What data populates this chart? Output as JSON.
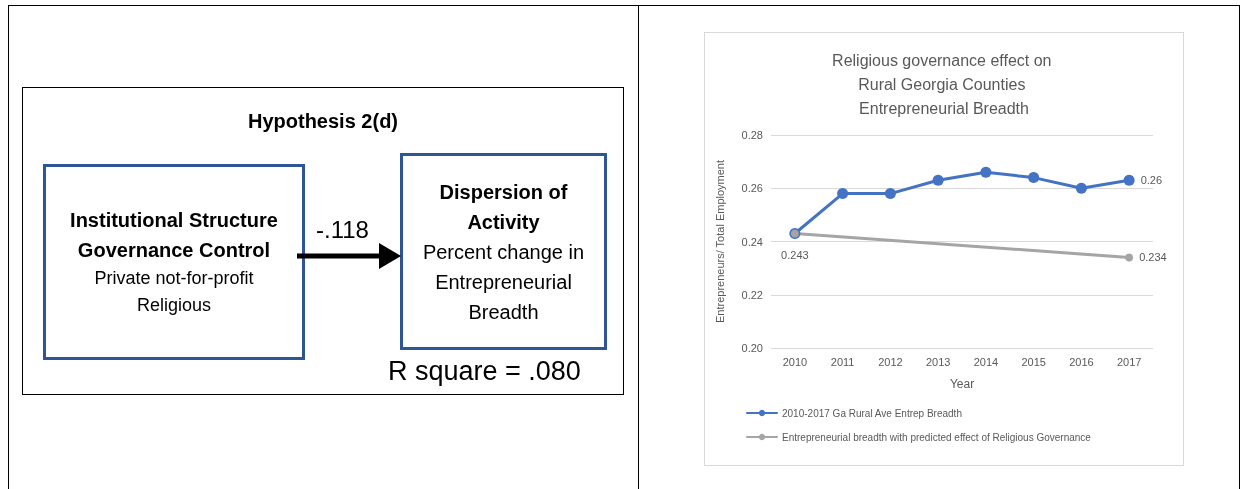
{
  "chart_data": [
    {
      "type": "other",
      "title": "Hypothesis 2(d)",
      "annotations": [
        "Institutional Structure Governance Control",
        "Private not-for-profit Religious",
        "-.118",
        "Dispersion of Activity",
        "Percent change in Entrepreneurial Breadth",
        "R square = .080"
      ]
    },
    {
      "type": "line",
      "title": "Religious governance effect on Rural Georgia Counties Entrepreneurial Breadth",
      "xlabel": "Year",
      "ylabel": "Entrepreneurs/ Total Employment",
      "categories": [
        "2010",
        "2011",
        "2012",
        "2013",
        "2014",
        "2015",
        "2016",
        "2017"
      ],
      "series": [
        {
          "name": "2010-2017 Ga Rural Ave Entrep Breadth",
          "color": "#4472c4",
          "values": [
            0.243,
            0.258,
            0.258,
            0.263,
            0.266,
            0.264,
            0.26,
            0.263
          ],
          "value_labels": [
            null,
            null,
            null,
            null,
            null,
            null,
            null,
            "0.26"
          ]
        },
        {
          "name": "Entrepreneurial breadth with predicted effect of Religious Governance",
          "color": "#a5a5a5",
          "values": [
            0.243,
            null,
            null,
            null,
            null,
            null,
            null,
            0.234
          ],
          "value_labels": [
            "0.243",
            null,
            null,
            null,
            null,
            null,
            null,
            "0.234"
          ]
        }
      ],
      "ylim": [
        0.2,
        0.28
      ],
      "yticks": [
        {
          "value": 0.2,
          "label": "0.20"
        },
        0.22,
        0.24,
        0.26,
        0.28
      ],
      "grid": "y",
      "legend": "bottom",
      "marker": "circle",
      "line_style": "solid"
    }
  ]
}
